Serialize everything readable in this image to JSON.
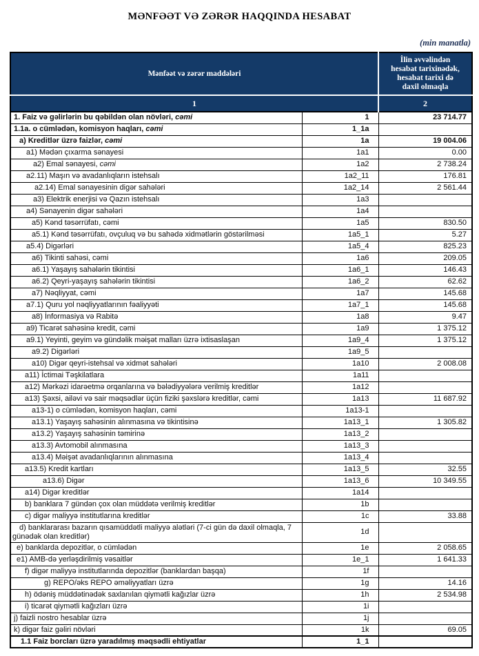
{
  "page": {
    "title": "MƏNFƏƏT VƏ ZƏRƏR HAQQINDA HESABAT",
    "unit_note": "(min manatla)"
  },
  "table": {
    "colors": {
      "header_bg": "#143A68",
      "header_text": "#FFFFFF",
      "border": "#000000"
    },
    "header": {
      "items_label": "Mənfəət və zərər maddələri",
      "value_label": "İlin əvvəlindən\nhesabat tarixinədək,\nhesabat tarixi də\ndaxil olmaqla",
      "items_col_num": "1",
      "value_col_num": "2"
    },
    "rows": [
      {
        "label": "1. Faiz və gəlirlərin bu qəbildən olan növləri, ",
        "italic": "cəmi",
        "code": "1",
        "value": "23 714.77",
        "bold": true,
        "indent": 4
      },
      {
        "label": "1.1a. o cümlədən, komisyon haqları, ",
        "italic": "cəmi",
        "code": "1_1a",
        "value": "",
        "bold": true,
        "indent": 4
      },
      {
        "label": "a) Kreditlər üzrə faizlər, ",
        "italic": "cəmi",
        "code": "1a",
        "value": "19 004.06",
        "bold": true,
        "indent": 12
      },
      {
        "label": "a1) Mədən çıxarma sənayesi",
        "code": "1a1",
        "value": "0.00",
        "indent": 22
      },
      {
        "label": "a2) Emal sənayesi, ",
        "italic": "cəmi",
        "code": "1a2",
        "value": "2 738.24",
        "indent": 32
      },
      {
        "label": "a2.11) Maşın və avadanlıqların istehsalı",
        "code": "1a2_11",
        "value": "176.81",
        "indent": 22
      },
      {
        "label": "a2.14) Emal sənayesinin digər sahələri",
        "code": "1a2_14",
        "value": "2 561.44",
        "indent": 34
      },
      {
        "label": "a3) Elektrik enerjisi və Qazın istehsalı",
        "code": "1a3",
        "value": "",
        "indent": 32
      },
      {
        "label": "a4) Sənayenin digər sahələri",
        "code": "1a4",
        "value": "",
        "indent": 22
      },
      {
        "label": "a5) Kənd təsərrüfatı, cəmi",
        "code": "1a5",
        "value": "830.50",
        "indent": 30
      },
      {
        "label": "a5.1) Kənd təsərrüfatı, ovçuluq və bu sahədə xidmətlərin göstərilməsi",
        "code": "1a5_1",
        "value": "5.27",
        "indent": 30
      },
      {
        "label": "a5.4) Digərləri",
        "code": "1a5_4",
        "value": "825.23",
        "indent": 22
      },
      {
        "label": "a6) Tikinti sahəsi, cəmi",
        "code": "1a6",
        "value": "209.05",
        "indent": 30
      },
      {
        "label": "a6.1) Yaşayış sahələrin tikintisi",
        "code": "1a6_1",
        "value": "146.43",
        "indent": 30
      },
      {
        "label": "a6.2) Qeyri-yaşayış sahələrin tikintisi",
        "code": "1a6_2",
        "value": "62.62",
        "indent": 30
      },
      {
        "label": "a7) Nəqliyyat, cəmi",
        "code": "1a7",
        "value": "145.68",
        "indent": 30
      },
      {
        "label": "a7.1) Quru yol nəqliyyatlarının fəaliyyəti",
        "code": "1a7_1",
        "value": "145.68",
        "indent": 22
      },
      {
        "label": "a8) İnformasiya və Rabitə",
        "code": "1a8",
        "value": "9.47",
        "indent": 30
      },
      {
        "label": "a9) Ticarət sahəsinə kredit, cəmi",
        "code": "1a9",
        "value": "1 375.12",
        "indent": 22
      },
      {
        "label": "a9.1) Yeyinti, geyim və gündəlik məişət malları üzrə ixtisaslaşan",
        "code": "1a9_4",
        "value": "1 375.12",
        "indent": 22
      },
      {
        "label": "a9.2) Digərləri",
        "code": "1a9_5",
        "value": "",
        "indent": 30
      },
      {
        "label": "a10) Digər qeyri-istehsal və xidmət sahələri",
        "code": "1a10",
        "value": "2 008.08",
        "indent": 30
      },
      {
        "label": "a11) İctimai Təşkilatlara",
        "code": "1a11",
        "value": "",
        "indent": 20
      },
      {
        "label": "a12) Mərkəzi idarəetmə orqanlarına və bələdiyyələrə verilmiş kreditlər",
        "code": "1a12",
        "value": "",
        "indent": 20
      },
      {
        "label": "a13) Şəxsi, ailəvi və sair məqsədlər üçün fiziki şəxslərə kreditlər, cəmi",
        "code": "1a13",
        "value": "11 687.92",
        "indent": 20
      },
      {
        "label": "a13-1) o cümlədən, komisyon haqları, cəmi",
        "code": "1a13-1",
        "value": "",
        "indent": 30
      },
      {
        "label": "a13.1) Yaşayış sahəsinin alınmasına və tikintisinə",
        "code": "1a13_1",
        "value": "1 305.82",
        "indent": 30
      },
      {
        "label": "a13.2) Yaşayış sahəsinin təmirinə",
        "code": "1a13_2",
        "value": "",
        "indent": 30
      },
      {
        "label": "a13.3) Avtomobil alınmasına",
        "code": "1a13_3",
        "value": "",
        "indent": 30
      },
      {
        "label": "a13.4) Məişət avadanlıqlarının alınmasına",
        "code": "1a13_4",
        "value": "",
        "indent": 30
      },
      {
        "label": "a13.5) Kredit kartları",
        "code": "1a13_5",
        "value": "32.55",
        "indent": 20
      },
      {
        "label": "a13.6) Digər",
        "code": "1a13_6",
        "value": "10 349.55",
        "indent": 46
      },
      {
        "label": "a14) Digər kreditlər",
        "code": "1a14",
        "value": "",
        "indent": 20
      },
      {
        "label": "b) banklara 7 gündən çox olan müddətə verilmiş kreditlər",
        "code": "1b",
        "value": "",
        "indent": 20
      },
      {
        "label": "c) digər maliyyə institutlarına kreditlər",
        "code": "1c",
        "value": "33.88",
        "indent": 20
      },
      {
        "label": "d) banklararası bazarın qısamüddətli maliyyə alətləri (7-ci gün də daxil olmaqla, 7 günədək olan kreditlər)",
        "code": "1d",
        "value": "",
        "indent": 12,
        "hanging": true
      },
      {
        "label": "e) banklarda depozitlər, o cümlədən",
        "code": "1e",
        "value": "2 058.65",
        "indent": 8
      },
      {
        "label": "e1) AMB-də yerləşdirilmiş vəsaitlər",
        "code": "1e_1",
        "value": "1 641.33",
        "indent": 8
      },
      {
        "label": "f) digər maliyyə institutlarında depozitlər (banklardan başqa)",
        "code": "1f",
        "value": "",
        "indent": 20
      },
      {
        "label": "g) REPO/əks REPO əməliyyatları üzrə",
        "code": "1g",
        "value": "14.16",
        "indent": 48
      },
      {
        "label": "h) ödəniş müddətinədək saxlanılan qiymətli kağızlar üzrə",
        "code": "1h",
        "value": "2 534.98",
        "indent": 20
      },
      {
        "label": "i) ticarət qiymətli kağızları üzrə",
        "code": "1i",
        "value": "",
        "indent": 20
      },
      {
        "label": "j) faizli nostro hesablar üzrə",
        "code": "1j",
        "value": "",
        "indent": 4
      },
      {
        "label": "k) digər faiz gəliri növləri",
        "code": "1k",
        "value": "69.05",
        "indent": 4
      },
      {
        "label": "1.1 Faiz borcları üzrə yaradılmış məqsədli ehtiyatlar",
        "code": "1_1",
        "value": "",
        "bold": true,
        "indent": 14
      }
    ]
  }
}
